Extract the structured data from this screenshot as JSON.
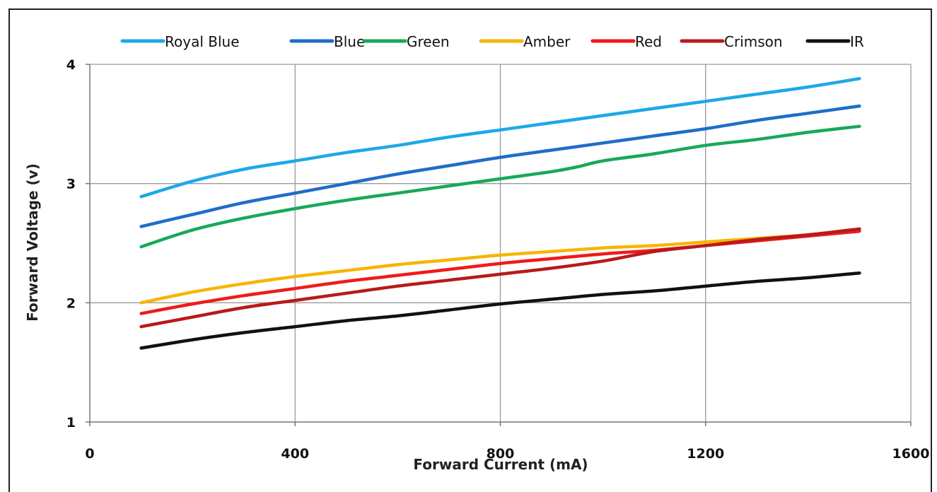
{
  "chart_data": {
    "type": "line",
    "title": "",
    "xlabel": "Forward Current  (mA)",
    "ylabel": "Forward Voltage (v)",
    "xlim": [
      0,
      1600
    ],
    "ylim": [
      1,
      4
    ],
    "xticks": [
      0,
      400,
      800,
      1200,
      1600
    ],
    "yticks": [
      1,
      2,
      3,
      4
    ],
    "grid": true,
    "legend_position": "top",
    "series": [
      {
        "name": "Royal Blue",
        "color": "#1EA8E8",
        "points": [
          [
            100,
            2.89
          ],
          [
            200,
            3.02
          ],
          [
            300,
            3.12
          ],
          [
            400,
            3.19
          ],
          [
            500,
            3.26
          ],
          [
            600,
            3.32
          ],
          [
            700,
            3.39
          ],
          [
            800,
            3.45
          ],
          [
            900,
            3.51
          ],
          [
            1000,
            3.57
          ],
          [
            1100,
            3.63
          ],
          [
            1200,
            3.69
          ],
          [
            1300,
            3.75
          ],
          [
            1400,
            3.81
          ],
          [
            1500,
            3.88
          ]
        ]
      },
      {
        "name": "Blue",
        "color": "#1F6DC8",
        "points": [
          [
            100,
            2.64
          ],
          [
            200,
            2.74
          ],
          [
            300,
            2.84
          ],
          [
            400,
            2.92
          ],
          [
            500,
            3.0
          ],
          [
            600,
            3.08
          ],
          [
            700,
            3.15
          ],
          [
            800,
            3.22
          ],
          [
            900,
            3.28
          ],
          [
            1000,
            3.34
          ],
          [
            1100,
            3.4
          ],
          [
            1200,
            3.46
          ],
          [
            1300,
            3.53
          ],
          [
            1400,
            3.59
          ],
          [
            1500,
            3.65
          ]
        ]
      },
      {
        "name": "Green",
        "color": "#19A85A",
        "points": [
          [
            100,
            2.47
          ],
          [
            200,
            2.61
          ],
          [
            300,
            2.71
          ],
          [
            400,
            2.79
          ],
          [
            500,
            2.86
          ],
          [
            600,
            2.92
          ],
          [
            700,
            2.98
          ],
          [
            800,
            3.04
          ],
          [
            900,
            3.1
          ],
          [
            950,
            3.14
          ],
          [
            1000,
            3.19
          ],
          [
            1100,
            3.25
          ],
          [
            1200,
            3.32
          ],
          [
            1300,
            3.37
          ],
          [
            1400,
            3.43
          ],
          [
            1500,
            3.48
          ]
        ]
      },
      {
        "name": "Amber",
        "color": "#F7B500",
        "points": [
          [
            100,
            2.0
          ],
          [
            200,
            2.09
          ],
          [
            300,
            2.16
          ],
          [
            400,
            2.22
          ],
          [
            500,
            2.27
          ],
          [
            600,
            2.32
          ],
          [
            700,
            2.36
          ],
          [
            800,
            2.4
          ],
          [
            900,
            2.43
          ],
          [
            1000,
            2.46
          ],
          [
            1100,
            2.48
          ],
          [
            1200,
            2.51
          ],
          [
            1300,
            2.54
          ],
          [
            1400,
            2.57
          ],
          [
            1500,
            2.6
          ]
        ]
      },
      {
        "name": "Red",
        "color": "#F01A1A",
        "points": [
          [
            100,
            1.91
          ],
          [
            200,
            1.99
          ],
          [
            300,
            2.06
          ],
          [
            400,
            2.12
          ],
          [
            500,
            2.18
          ],
          [
            600,
            2.23
          ],
          [
            700,
            2.28
          ],
          [
            800,
            2.33
          ],
          [
            900,
            2.37
          ],
          [
            1000,
            2.41
          ],
          [
            1100,
            2.44
          ],
          [
            1200,
            2.48
          ],
          [
            1300,
            2.52
          ],
          [
            1400,
            2.56
          ],
          [
            1500,
            2.6
          ]
        ]
      },
      {
        "name": "Crimson",
        "color": "#B81A1A",
        "points": [
          [
            100,
            1.8
          ],
          [
            200,
            1.88
          ],
          [
            300,
            1.96
          ],
          [
            400,
            2.02
          ],
          [
            500,
            2.08
          ],
          [
            600,
            2.14
          ],
          [
            700,
            2.19
          ],
          [
            800,
            2.24
          ],
          [
            900,
            2.29
          ],
          [
            1000,
            2.35
          ],
          [
            1100,
            2.43
          ],
          [
            1200,
            2.48
          ],
          [
            1300,
            2.53
          ],
          [
            1400,
            2.57
          ],
          [
            1500,
            2.62
          ]
        ]
      },
      {
        "name": "IR",
        "color": "#111111",
        "points": [
          [
            100,
            1.62
          ],
          [
            200,
            1.69
          ],
          [
            300,
            1.75
          ],
          [
            400,
            1.8
          ],
          [
            500,
            1.85
          ],
          [
            600,
            1.89
          ],
          [
            700,
            1.94
          ],
          [
            800,
            1.99
          ],
          [
            900,
            2.03
          ],
          [
            1000,
            2.07
          ],
          [
            1100,
            2.1
          ],
          [
            1200,
            2.14
          ],
          [
            1300,
            2.18
          ],
          [
            1400,
            2.21
          ],
          [
            1500,
            2.25
          ]
        ]
      }
    ]
  }
}
